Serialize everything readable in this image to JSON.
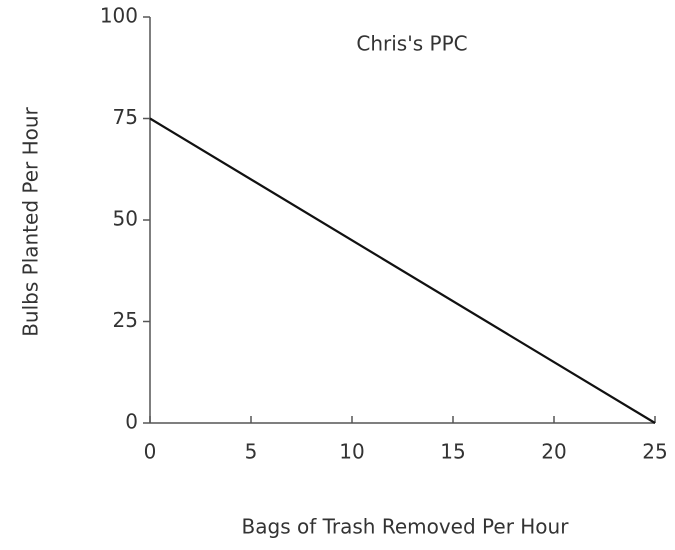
{
  "chart_data": {
    "type": "line",
    "title": "Chris's PPC",
    "x_label": "Bags of Trash Removed Per Hour",
    "y_label": "Bulbs Planted Per Hour",
    "x": [
      0,
      25
    ],
    "series": [
      {
        "name": "Chris's PPC",
        "color": "#111111",
        "values": [
          75,
          0
        ]
      }
    ],
    "xlim": [
      0,
      25
    ],
    "xticks": [
      0,
      5,
      10,
      15,
      20,
      25
    ],
    "ylim": [
      0,
      100
    ],
    "yticks": [
      0,
      25,
      50,
      75,
      100
    ],
    "grid": false
  }
}
